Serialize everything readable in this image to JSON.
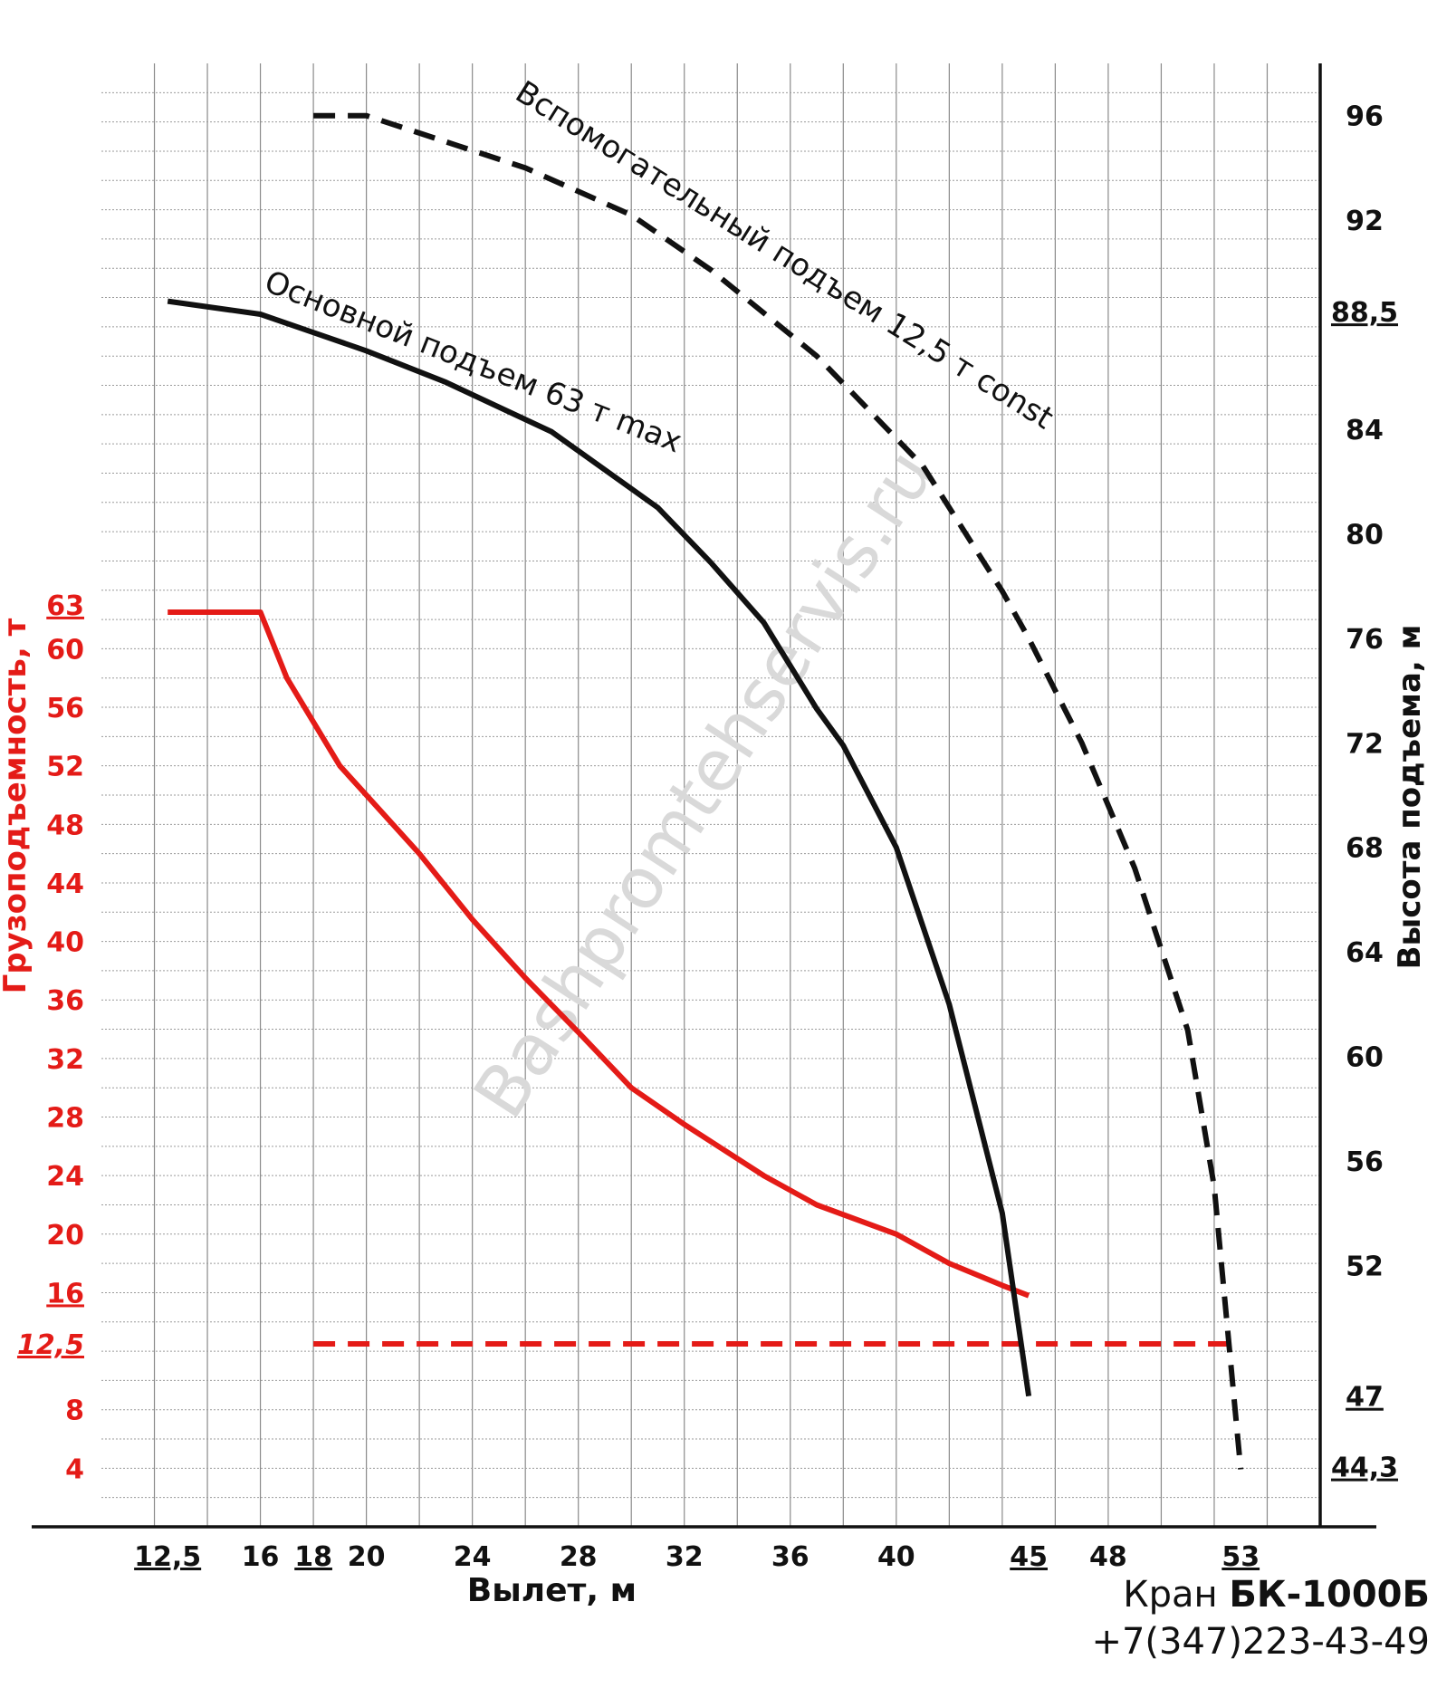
{
  "chart_data": {
    "type": "line",
    "xlabel": "Вылет, м",
    "ylabel_left": "Грузоподъемность, т",
    "ylabel_right": "Высота подъема, м",
    "x_range": [
      10,
      56
    ],
    "y_left_range": [
      0,
      100
    ],
    "y_right_range": [
      42,
      98
    ],
    "grid": true,
    "x_ticks": [
      {
        "value": 12.5,
        "label": "12,5",
        "underline": true
      },
      {
        "value": 16,
        "label": "16",
        "underline": false
      },
      {
        "value": 18,
        "label": "18",
        "underline": true
      },
      {
        "value": 20,
        "label": "20",
        "underline": false
      },
      {
        "value": 24,
        "label": "24",
        "underline": false
      },
      {
        "value": 28,
        "label": "28",
        "underline": false
      },
      {
        "value": 32,
        "label": "32",
        "underline": false
      },
      {
        "value": 36,
        "label": "36",
        "underline": false
      },
      {
        "value": 40,
        "label": "40",
        "underline": false
      },
      {
        "value": 45,
        "label": "45",
        "underline": true
      },
      {
        "value": 48,
        "label": "48",
        "underline": false
      },
      {
        "value": 53,
        "label": "53",
        "underline": true
      }
    ],
    "y_left_ticks": [
      {
        "value": 4,
        "label": "4",
        "underline": false,
        "italic": false
      },
      {
        "value": 8,
        "label": "8",
        "underline": false,
        "italic": false
      },
      {
        "value": 12.5,
        "label": "12,5",
        "underline": true,
        "italic": true
      },
      {
        "value": 16,
        "label": "16",
        "underline": true,
        "italic": false
      },
      {
        "value": 20,
        "label": "20",
        "underline": false,
        "italic": false
      },
      {
        "value": 24,
        "label": "24",
        "underline": false,
        "italic": false
      },
      {
        "value": 28,
        "label": "28",
        "underline": false,
        "italic": false
      },
      {
        "value": 32,
        "label": "32",
        "underline": false,
        "italic": false
      },
      {
        "value": 36,
        "label": "36",
        "underline": false,
        "italic": false
      },
      {
        "value": 40,
        "label": "40",
        "underline": false,
        "italic": false
      },
      {
        "value": 44,
        "label": "44",
        "underline": false,
        "italic": false
      },
      {
        "value": 48,
        "label": "48",
        "underline": false,
        "italic": false
      },
      {
        "value": 52,
        "label": "52",
        "underline": false,
        "italic": false
      },
      {
        "value": 56,
        "label": "56",
        "underline": false,
        "italic": false
      },
      {
        "value": 60,
        "label": "60",
        "underline": false,
        "italic": false
      },
      {
        "value": 63,
        "label": "63",
        "underline": true,
        "italic": false
      }
    ],
    "y_right_ticks": [
      {
        "value": 44.3,
        "label": "44,3",
        "underline": true
      },
      {
        "value": 47,
        "label": "47",
        "underline": true
      },
      {
        "value": 52,
        "label": "52",
        "underline": false
      },
      {
        "value": 56,
        "label": "56",
        "underline": false
      },
      {
        "value": 60,
        "label": "60",
        "underline": false
      },
      {
        "value": 64,
        "label": "64",
        "underline": false
      },
      {
        "value": 68,
        "label": "68",
        "underline": false
      },
      {
        "value": 72,
        "label": "72",
        "underline": false
      },
      {
        "value": 76,
        "label": "76",
        "underline": false
      },
      {
        "value": 80,
        "label": "80",
        "underline": false
      },
      {
        "value": 84,
        "label": "84",
        "underline": false
      },
      {
        "value": 88.5,
        "label": "88,5",
        "underline": true
      },
      {
        "value": 92,
        "label": "92",
        "underline": false
      },
      {
        "value": 96,
        "label": "96",
        "underline": false
      }
    ],
    "series": [
      {
        "name": "",
        "axis": "left",
        "color": "#e41b17",
        "dash": false,
        "x": [
          12.5,
          16,
          17,
          19,
          20,
          22,
          24,
          26,
          28,
          30,
          32,
          35,
          37,
          40,
          42,
          44,
          45
        ],
        "y": [
          62.5,
          62.5,
          58,
          52,
          50,
          46,
          41.5,
          37.5,
          33.8,
          30,
          27.5,
          24,
          22,
          20,
          18,
          16.5,
          15.8
        ]
      },
      {
        "name": "",
        "axis": "left",
        "color": "#e41b17",
        "dash": true,
        "x": [
          18,
          53
        ],
        "y": [
          12.5,
          12.5
        ]
      },
      {
        "name": "",
        "axis": "right",
        "color": "#111111",
        "dash": false,
        "x": [
          12.5,
          16,
          18,
          20,
          23,
          27,
          31,
          33,
          35,
          37,
          38,
          40,
          42,
          44,
          45
        ],
        "y": [
          88.9,
          88.4,
          87.7,
          87,
          85.8,
          83.9,
          81,
          78.9,
          76.6,
          73.3,
          71.9,
          68,
          62,
          54,
          47
        ]
      },
      {
        "name": "",
        "axis": "right",
        "color": "#111111",
        "dash": true,
        "x": [
          18,
          20,
          26,
          30,
          33,
          37,
          41,
          44,
          45,
          47,
          49,
          51,
          52,
          53
        ],
        "y": [
          96,
          96,
          94,
          92.2,
          90.1,
          86.8,
          82.6,
          77.8,
          76,
          72,
          67.2,
          61,
          55,
          44.2
        ]
      }
    ],
    "annotations": [
      {
        "text": "Основной подъем 63 т max",
        "series_index": 2
      },
      {
        "text": "Вспомогательный подъем 12,5 т const",
        "series_index": 3
      }
    ],
    "watermark": "Bashpromtehservis.ru"
  },
  "caption": {
    "model_prefix": "Кран ",
    "model_name": "БК-1000Б",
    "phone": "+7(347)223-43-49"
  }
}
